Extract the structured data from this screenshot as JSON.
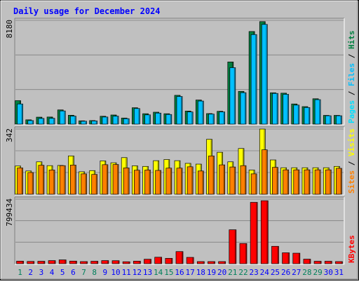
{
  "chart_data": {
    "type": "bar",
    "title": "Daily usage for December 2024",
    "categories": [
      "1",
      "2",
      "3",
      "4",
      "5",
      "6",
      "7",
      "8",
      "9",
      "10",
      "11",
      "12",
      "13",
      "14",
      "15",
      "16",
      "17",
      "18",
      "19",
      "20",
      "21",
      "22",
      "23",
      "24",
      "25",
      "26",
      "27",
      "28",
      "29",
      "30",
      "31"
    ],
    "weekend_days": [
      "1",
      "7",
      "8",
      "14",
      "15",
      "21",
      "22",
      "28",
      "29"
    ],
    "panels": [
      {
        "id": "pages-files-hits",
        "ymax_label": "8180",
        "ylim": [
          0,
          8180
        ],
        "legend": [
          "Pages",
          "Files",
          "Hits"
        ],
        "series": [
          {
            "name": "Hits",
            "values": [
              1850,
              340,
              550,
              560,
              1120,
              700,
              260,
              280,
              620,
              720,
              480,
              1290,
              820,
              940,
              820,
              2270,
              1030,
              1900,
              830,
              1010,
              4900,
              2580,
              7300,
              8080,
              2470,
              2440,
              1590,
              1380,
              2000,
              690,
              690
            ]
          },
          {
            "name": "Files",
            "values": [
              1590,
              280,
              450,
              460,
              1040,
              630,
              230,
              250,
              560,
              630,
              430,
              1230,
              730,
              870,
              760,
              2180,
              960,
              1820,
              790,
              960,
              4450,
              2480,
              7060,
              7860,
              2420,
              2350,
              1500,
              1310,
              1930,
              660,
              660
            ]
          },
          {
            "name": "Pages",
            "values": [
              0,
              0,
              0,
              0,
              0,
              0,
              0,
              0,
              0,
              0,
              0,
              0,
              0,
              0,
              0,
              0,
              0,
              0,
              0,
              0,
              0,
              0,
              0,
              0,
              0,
              0,
              0,
              0,
              0,
              0,
              0
            ]
          }
        ]
      },
      {
        "id": "visits-sites",
        "ymax_label": "342",
        "ylim": [
          0,
          342
        ],
        "legend": [
          "Sites",
          "Visits"
        ],
        "series": [
          {
            "name": "Visits",
            "values": [
              148,
              122,
              170,
              150,
              151,
              201,
              118,
              124,
              175,
              165,
              192,
              149,
              146,
              176,
              182,
              176,
              162,
              158,
              288,
              220,
              170,
              240,
              127,
              342,
              180,
              139,
              139,
              139,
              139,
              139,
              146
            ]
          },
          {
            "name": "Sites",
            "values": [
              138,
              114,
              152,
              127,
              150,
              153,
              107,
              104,
              155,
              156,
              138,
              126,
              127,
              125,
              137,
              137,
              144,
              122,
              201,
              154,
              143,
              150,
              107,
              233,
              141,
              128,
              128,
              128,
              128,
              128,
              136
            ]
          }
        ]
      },
      {
        "id": "kbytes",
        "ymax_label": "799434",
        "ylim": [
          0,
          799434
        ],
        "legend": [
          "KBytes"
        ],
        "series": [
          {
            "name": "KBytes",
            "values": [
              31000,
              28000,
              30000,
              38000,
              47000,
              32000,
              26000,
              30000,
              38000,
              37000,
              24000,
              31000,
              55000,
              80000,
              66000,
              150000,
              78000,
              26000,
              26000,
              26000,
              420000,
              250000,
              760000,
              780000,
              215000,
              135000,
              130000,
              56000,
              30000,
              30000,
              26000
            ]
          }
        ]
      }
    ],
    "colors": {
      "hits": "#008040",
      "files": "#00c0ff",
      "pages": "#00e0ff",
      "visits": "#ffff00",
      "sites": "#ff8000",
      "kbytes": "#ff0000",
      "title": "#0000ff",
      "weekday": "#0000ff",
      "weekend": "#00805c",
      "background": "#c0c0c0"
    }
  }
}
